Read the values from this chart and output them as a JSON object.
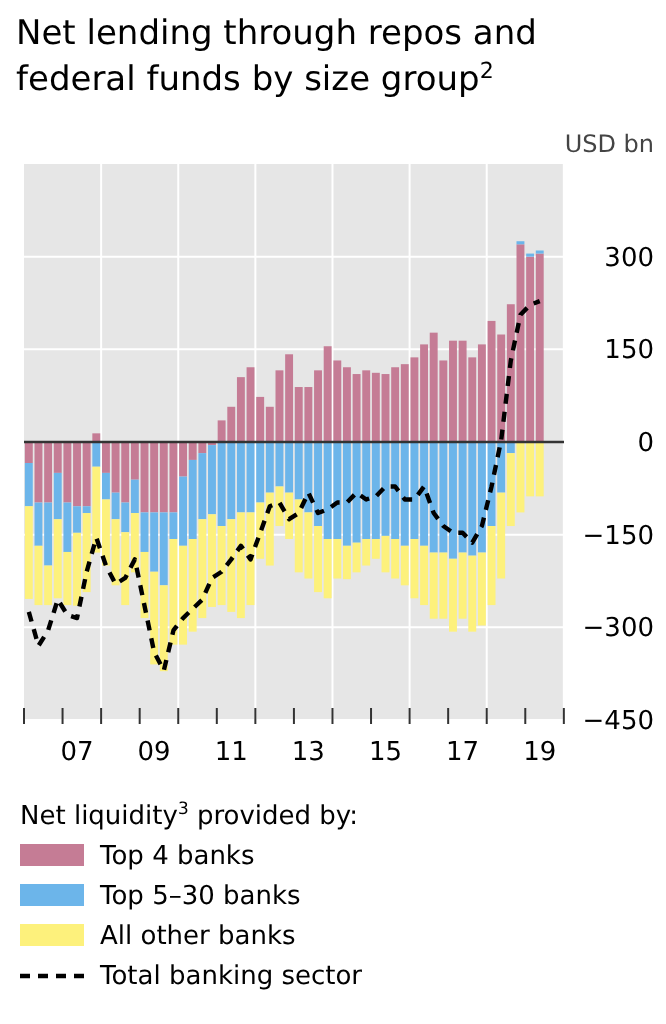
{
  "chart_data": {
    "type": "bar",
    "stacked": true,
    "title": "Net lending through repos and federal funds by size group$^{2}$",
    "ylabel": "USD bn",
    "legend_title": "Net liquidity$^{3}$ provided by:",
    "legend": "bottom",
    "grid": true,
    "categories": [
      null,
      null,
      null,
      null,
      null,
      "07",
      null,
      null,
      null,
      null,
      null,
      null,
      null,
      "09",
      null,
      null,
      null,
      null,
      null,
      null,
      null,
      "11",
      null,
      null,
      null,
      null,
      null,
      null,
      null,
      "13",
      null,
      null,
      null,
      null,
      null,
      null,
      null,
      "15",
      null,
      null,
      null,
      null,
      null,
      null,
      null,
      "17",
      null,
      null,
      null,
      null,
      null,
      null,
      null,
      "19"
    ],
    "ylim": [
      -450,
      450
    ],
    "yticks": [
      -450,
      -300,
      -150,
      0,
      150,
      300
    ],
    "series": [
      {
        "name": "Top 4 banks",
        "color": "#c57c95",
        "values": [
          -34,
          -98,
          -98,
          -50,
          -98,
          -104,
          -104,
          14,
          -50,
          -82,
          -98,
          -61,
          -114,
          -114,
          -114,
          -114,
          -56,
          -29,
          -18,
          -5,
          35,
          57,
          105,
          121,
          73,
          57,
          116,
          142,
          89,
          89,
          116,
          155,
          132,
          121,
          110,
          116,
          112,
          110,
          121,
          126,
          137,
          158,
          177,
          132,
          164,
          164,
          137,
          158,
          196,
          174,
          223,
          320,
          300,
          305
        ]
      },
      {
        "name": "Top 5–30 banks",
        "color": "#6cb5ea",
        "values": [
          -70,
          -70,
          -102,
          -75,
          -80,
          -43,
          -11,
          -40,
          -43,
          -43,
          -48,
          -54,
          -64,
          -96,
          -118,
          -43,
          -112,
          -128,
          -107,
          -112,
          -136,
          -125,
          -114,
          -114,
          -98,
          -82,
          -72,
          -82,
          -93,
          -114,
          -136,
          -157,
          -157,
          -168,
          -163,
          -157,
          -157,
          -152,
          -157,
          -168,
          -157,
          -168,
          -179,
          -179,
          -189,
          -179,
          -184,
          -179,
          -136,
          -82,
          -18,
          5,
          5,
          5
        ]
      },
      {
        "name": "All other banks",
        "color": "#fdf17c",
        "values": [
          -150,
          -96,
          -64,
          -128,
          -86,
          -118,
          -128,
          -139,
          -107,
          -107,
          -118,
          -96,
          -107,
          -150,
          -139,
          -171,
          -160,
          -150,
          -160,
          -150,
          -128,
          -150,
          -171,
          -150,
          -91,
          -118,
          -64,
          -75,
          -118,
          -107,
          -107,
          -96,
          -64,
          -54,
          -48,
          -43,
          -32,
          -59,
          -64,
          -64,
          -96,
          -96,
          -107,
          -107,
          -118,
          -107,
          -123,
          -118,
          -128,
          -139,
          -118,
          -114,
          -88,
          -88
        ]
      },
      {
        "name": "Total banking sector",
        "type": "line",
        "color": "#000000",
        "line_style": "dashed",
        "values": [
          -275,
          -330,
          -305,
          -255,
          -280,
          -285,
          -210,
          -155,
          -200,
          -230,
          -220,
          -190,
          -265,
          -340,
          -370,
          -305,
          -285,
          -270,
          -255,
          -220,
          -210,
          -190,
          -168,
          -190,
          -147,
          -104,
          -98,
          -125,
          -115,
          -82,
          -115,
          -109,
          -98,
          -98,
          -82,
          -93,
          -88,
          -72,
          -72,
          -93,
          -93,
          -72,
          -115,
          -136,
          -147,
          -147,
          -163,
          -136,
          -72,
          3,
          132,
          206,
          222,
          228
        ]
      }
    ]
  }
}
